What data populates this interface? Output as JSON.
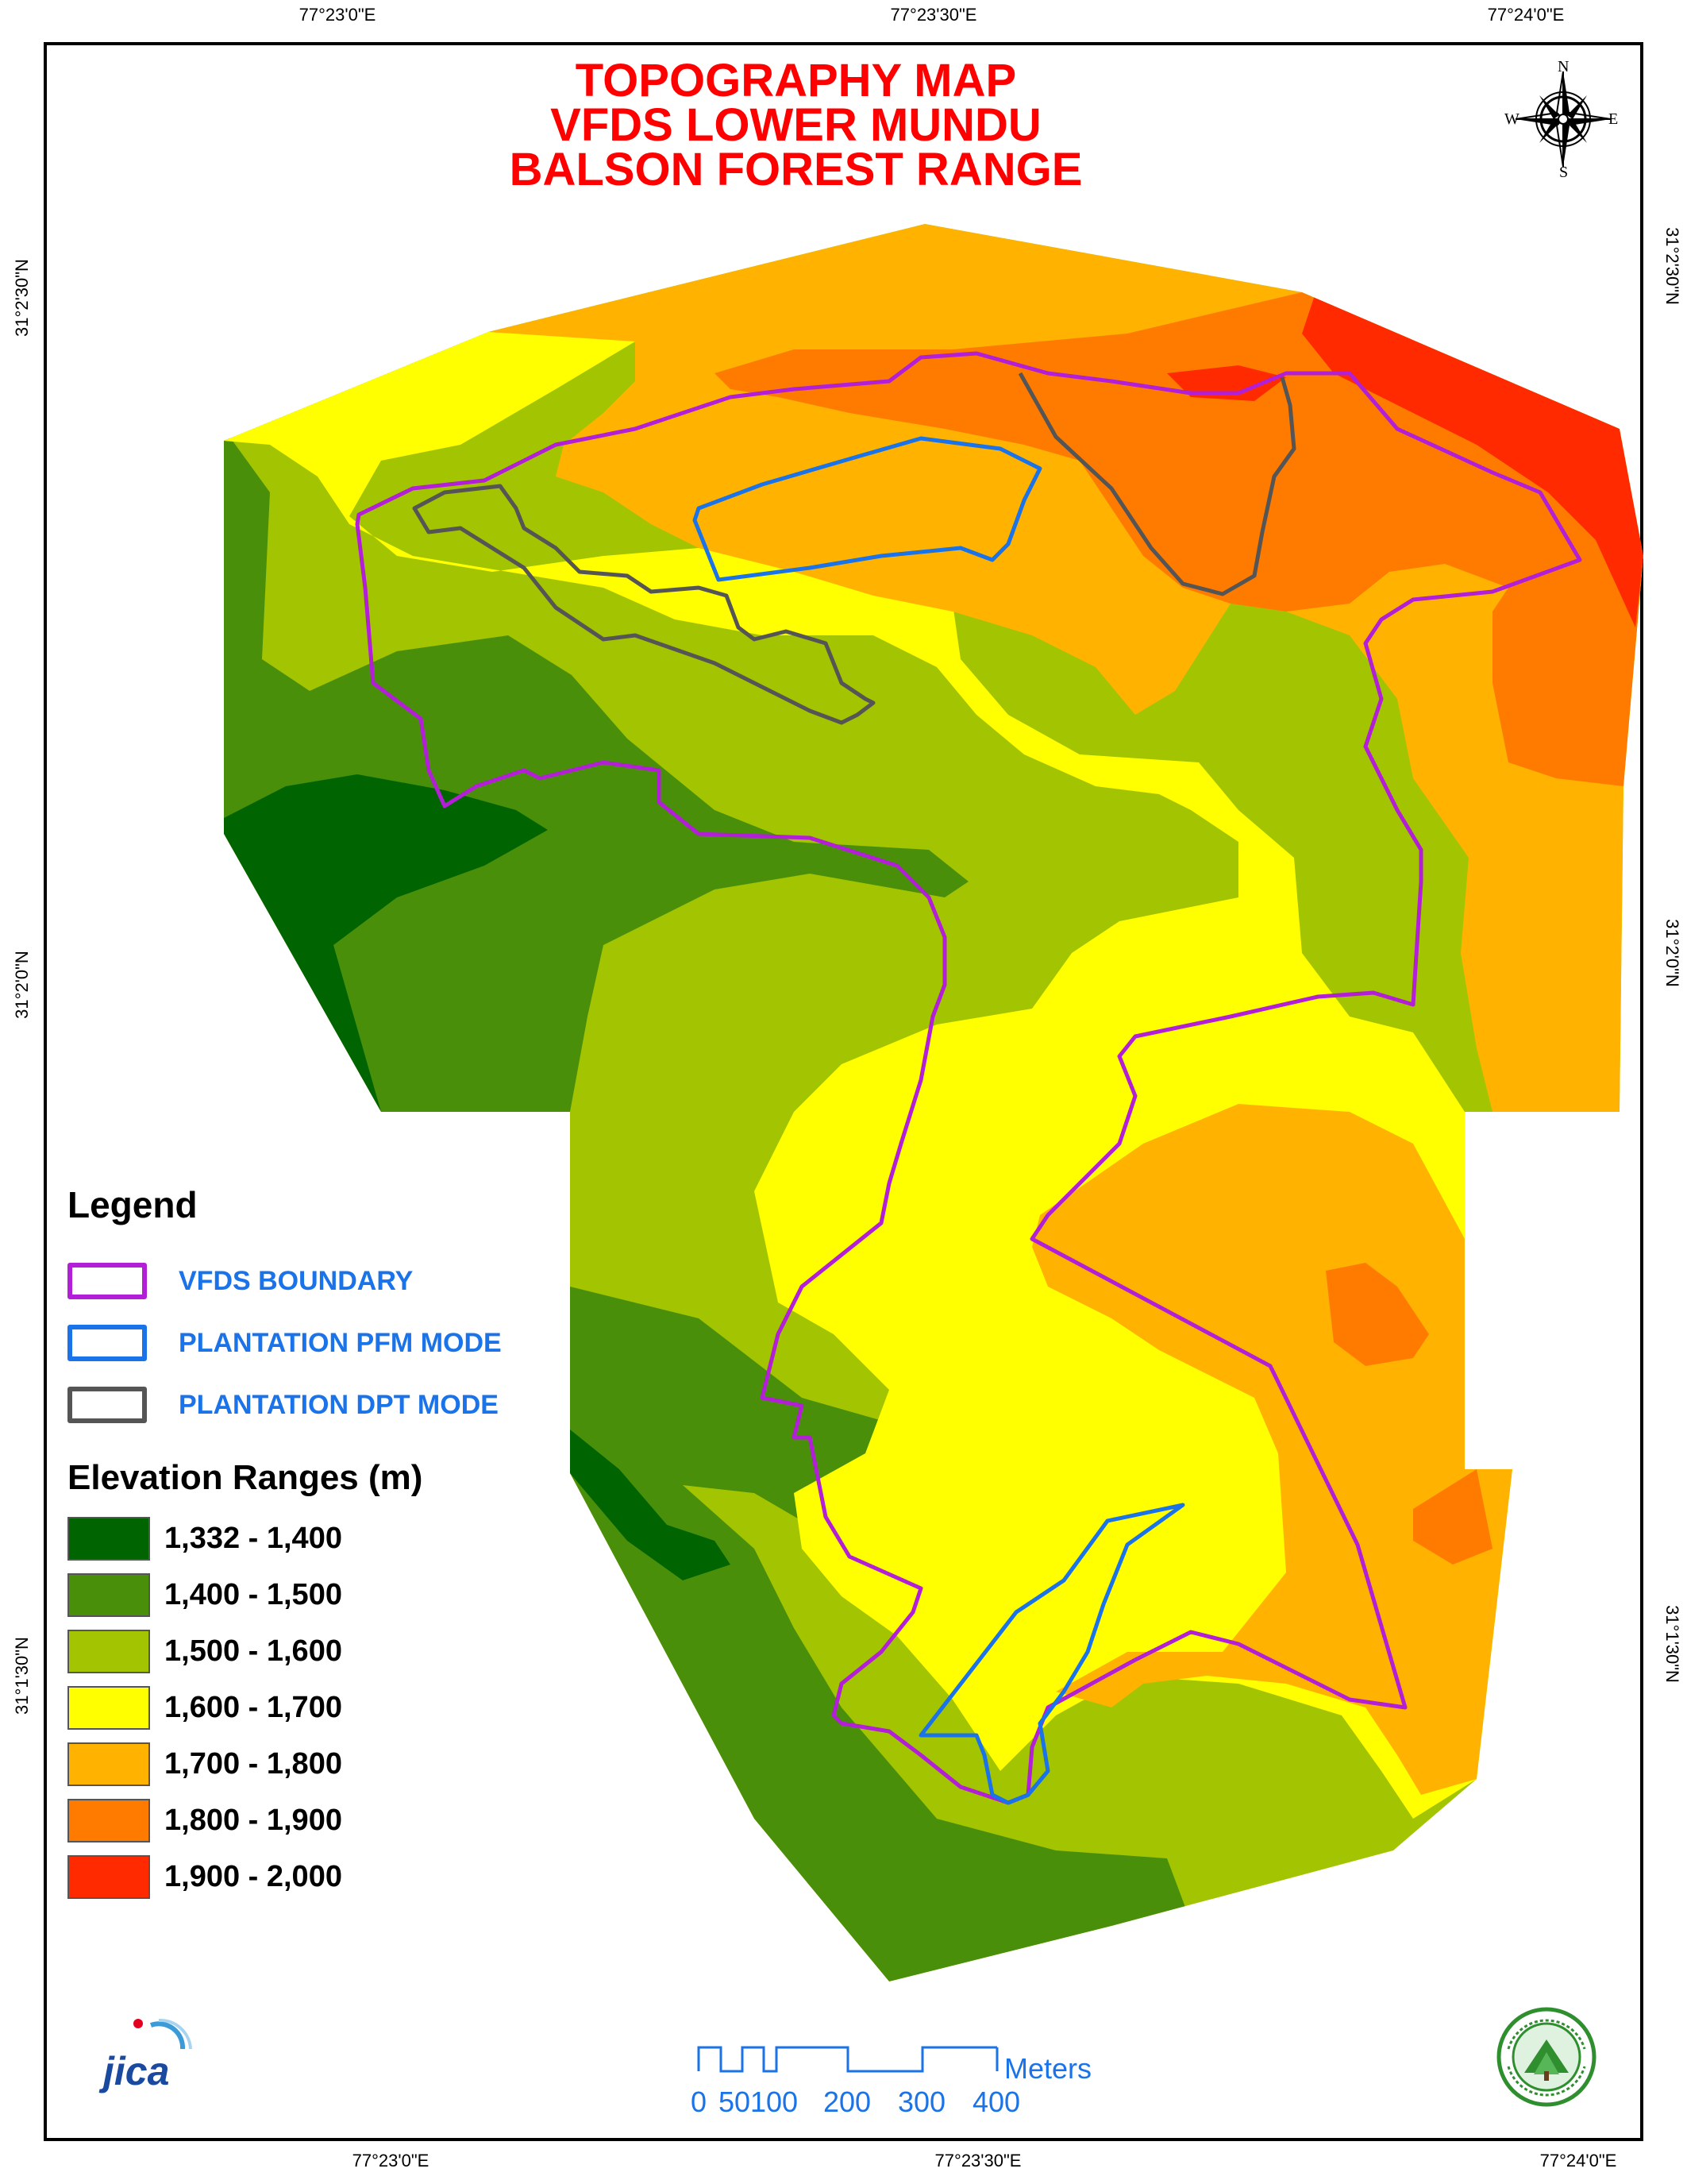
{
  "title": {
    "line1": "TOPOGRAPHY MAP",
    "line2": "VFDS LOWER MUNDU",
    "line3": "BALSON FOREST RANGE"
  },
  "coordinates": {
    "top": [
      "77°23'0\"E",
      "77°23'30\"E",
      "77°24'0\"E"
    ],
    "bottom": [
      "77°23'0\"E",
      "77°23'30\"E",
      "77°24'0\"E"
    ],
    "left": [
      "31°2'30\"N",
      "31°2'0\"N",
      "31°1'30\"N"
    ],
    "right": [
      "31°2'30\"N",
      "31°2'0\"N",
      "31°1'30\"N"
    ]
  },
  "compass": {
    "n": "N",
    "s": "S",
    "e": "E",
    "w": "W"
  },
  "legend": {
    "heading": "Legend",
    "lines": [
      {
        "label": "VFDS BOUNDARY",
        "color": "#b21fd6"
      },
      {
        "label": "PLANTATION PFM MODE",
        "color": "#1a73e8"
      },
      {
        "label": "PLANTATION DPT MODE",
        "color": "#555555"
      }
    ],
    "elevation_heading": "Elevation Ranges (m)",
    "elevation": [
      {
        "label": "1,332 - 1,400",
        "color": "#006400"
      },
      {
        "label": "1,400 - 1,500",
        "color": "#4a8f0a"
      },
      {
        "label": "1,500 - 1,600",
        "color": "#a3c400"
      },
      {
        "label": "1,600 - 1,700",
        "color": "#ffff00"
      },
      {
        "label": "1,700 - 1,800",
        "color": "#ffb300"
      },
      {
        "label": "1,800 - 1,900",
        "color": "#ff7b00"
      },
      {
        "label": "1,900 - 2,000",
        "color": "#ff2a00"
      }
    ]
  },
  "scale_bar": {
    "unit": "Meters",
    "ticks": [
      "0",
      "50",
      "100",
      "200",
      "300",
      "400"
    ]
  },
  "logos": {
    "left": "JICA",
    "right": "forest-department-emblem"
  }
}
